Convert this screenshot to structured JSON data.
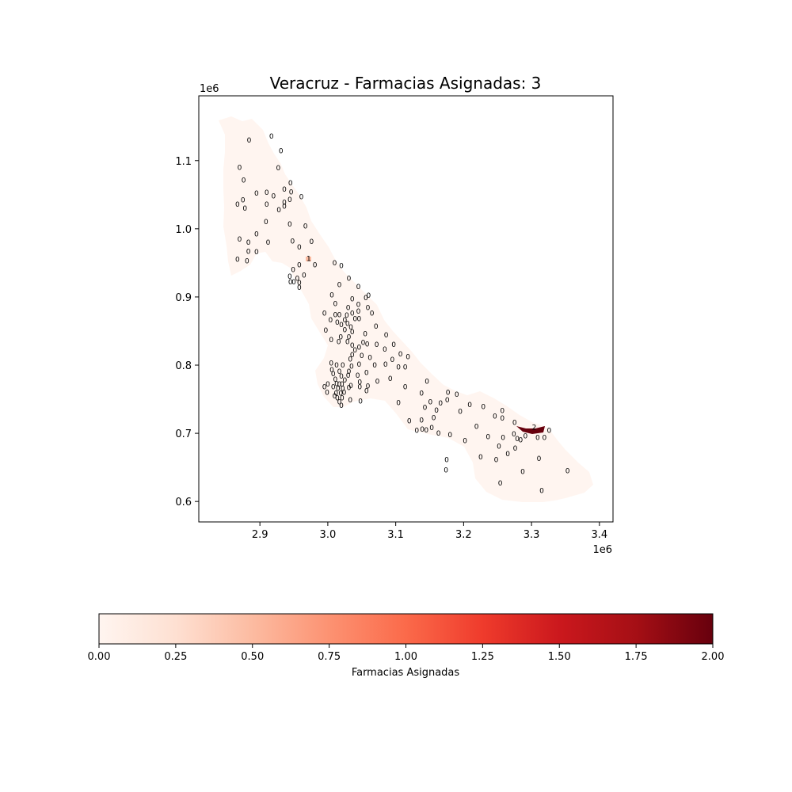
{
  "title": "Veracruz  - Farmacias Asignadas: 3",
  "map": {
    "x_offset_label": "1e6",
    "y_offset_label": "1e6",
    "x_ticks": [
      "2.9",
      "3.0",
      "3.1",
      "3.2",
      "3.3",
      "3.4"
    ],
    "y_ticks": [
      "0.6",
      "0.7",
      "0.8",
      "0.9",
      "1.0",
      "1.1"
    ],
    "x_range": [
      2.81,
      3.42
    ],
    "y_range": [
      0.57,
      1.195
    ],
    "region_fill": "#fff5f0",
    "highlight_fill": "#67000d",
    "mid_fill": "#fcbba1",
    "labels": [
      {
        "x": 2.884,
        "y": 1.13,
        "v": "0"
      },
      {
        "x": 2.917,
        "y": 1.136,
        "v": "0"
      },
      {
        "x": 2.931,
        "y": 1.114,
        "v": "0"
      },
      {
        "x": 2.87,
        "y": 1.09,
        "v": "0"
      },
      {
        "x": 2.927,
        "y": 1.089,
        "v": "0"
      },
      {
        "x": 2.876,
        "y": 1.071,
        "v": "0"
      },
      {
        "x": 2.945,
        "y": 1.067,
        "v": "0"
      },
      {
        "x": 2.895,
        "y": 1.052,
        "v": "0"
      },
      {
        "x": 2.91,
        "y": 1.053,
        "v": "0"
      },
      {
        "x": 2.936,
        "y": 1.058,
        "v": "0"
      },
      {
        "x": 2.946,
        "y": 1.054,
        "v": "0"
      },
      {
        "x": 2.92,
        "y": 1.048,
        "v": "0"
      },
      {
        "x": 2.961,
        "y": 1.047,
        "v": "0"
      },
      {
        "x": 2.875,
        "y": 1.042,
        "v": "0"
      },
      {
        "x": 2.867,
        "y": 1.036,
        "v": "0"
      },
      {
        "x": 2.878,
        "y": 1.03,
        "v": "0"
      },
      {
        "x": 2.91,
        "y": 1.036,
        "v": "0"
      },
      {
        "x": 2.936,
        "y": 1.039,
        "v": "0"
      },
      {
        "x": 2.944,
        "y": 1.043,
        "v": "0"
      },
      {
        "x": 2.936,
        "y": 1.033,
        "v": "0"
      },
      {
        "x": 2.928,
        "y": 1.028,
        "v": "0"
      },
      {
        "x": 2.909,
        "y": 1.01,
        "v": "0"
      },
      {
        "x": 2.944,
        "y": 1.007,
        "v": "0"
      },
      {
        "x": 2.967,
        "y": 1.004,
        "v": "0"
      },
      {
        "x": 2.895,
        "y": 0.992,
        "v": "0"
      },
      {
        "x": 2.87,
        "y": 0.985,
        "v": "0"
      },
      {
        "x": 2.883,
        "y": 0.98,
        "v": "0"
      },
      {
        "x": 2.912,
        "y": 0.98,
        "v": "0"
      },
      {
        "x": 2.948,
        "y": 0.982,
        "v": "0"
      },
      {
        "x": 2.976,
        "y": 0.981,
        "v": "0"
      },
      {
        "x": 2.958,
        "y": 0.973,
        "v": "0"
      },
      {
        "x": 2.883,
        "y": 0.967,
        "v": "0"
      },
      {
        "x": 2.895,
        "y": 0.966,
        "v": "0"
      },
      {
        "x": 2.867,
        "y": 0.955,
        "v": "0"
      },
      {
        "x": 2.881,
        "y": 0.953,
        "v": "0"
      },
      {
        "x": 2.972,
        "y": 0.956,
        "v": "1"
      },
      {
        "x": 2.958,
        "y": 0.947,
        "v": "0"
      },
      {
        "x": 2.981,
        "y": 0.947,
        "v": "0"
      },
      {
        "x": 3.01,
        "y": 0.95,
        "v": "0"
      },
      {
        "x": 3.02,
        "y": 0.946,
        "v": "0"
      },
      {
        "x": 2.949,
        "y": 0.94,
        "v": "0"
      },
      {
        "x": 2.944,
        "y": 0.93,
        "v": "0"
      },
      {
        "x": 2.955,
        "y": 0.927,
        "v": "0"
      },
      {
        "x": 2.965,
        "y": 0.932,
        "v": "0"
      },
      {
        "x": 2.945,
        "y": 0.922,
        "v": "0"
      },
      {
        "x": 2.95,
        "y": 0.922,
        "v": "0"
      },
      {
        "x": 2.958,
        "y": 0.921,
        "v": "0"
      },
      {
        "x": 2.958,
        "y": 0.914,
        "v": "0"
      },
      {
        "x": 3.031,
        "y": 0.927,
        "v": "0"
      },
      {
        "x": 3.017,
        "y": 0.918,
        "v": "0"
      },
      {
        "x": 3.045,
        "y": 0.915,
        "v": "0"
      },
      {
        "x": 3.006,
        "y": 0.903,
        "v": "0"
      },
      {
        "x": 3.036,
        "y": 0.897,
        "v": "0"
      },
      {
        "x": 3.056,
        "y": 0.899,
        "v": "0"
      },
      {
        "x": 3.06,
        "y": 0.902,
        "v": "0"
      },
      {
        "x": 3.011,
        "y": 0.89,
        "v": "0"
      },
      {
        "x": 3.045,
        "y": 0.889,
        "v": "0"
      },
      {
        "x": 3.059,
        "y": 0.884,
        "v": "0"
      },
      {
        "x": 3.03,
        "y": 0.884,
        "v": "0"
      },
      {
        "x": 2.995,
        "y": 0.876,
        "v": "0"
      },
      {
        "x": 3.011,
        "y": 0.874,
        "v": "0"
      },
      {
        "x": 3.017,
        "y": 0.874,
        "v": "0"
      },
      {
        "x": 3.028,
        "y": 0.873,
        "v": "0"
      },
      {
        "x": 3.036,
        "y": 0.876,
        "v": "0"
      },
      {
        "x": 3.045,
        "y": 0.879,
        "v": "0"
      },
      {
        "x": 3.065,
        "y": 0.876,
        "v": "0"
      },
      {
        "x": 3.004,
        "y": 0.866,
        "v": "0"
      },
      {
        "x": 3.014,
        "y": 0.863,
        "v": "0"
      },
      {
        "x": 3.025,
        "y": 0.866,
        "v": "0"
      },
      {
        "x": 3.04,
        "y": 0.868,
        "v": "0"
      },
      {
        "x": 3.046,
        "y": 0.868,
        "v": "0"
      },
      {
        "x": 3.02,
        "y": 0.859,
        "v": "0"
      },
      {
        "x": 3.029,
        "y": 0.861,
        "v": "0"
      },
      {
        "x": 3.034,
        "y": 0.856,
        "v": "0"
      },
      {
        "x": 3.071,
        "y": 0.857,
        "v": "0"
      },
      {
        "x": 2.997,
        "y": 0.851,
        "v": "0"
      },
      {
        "x": 3.025,
        "y": 0.852,
        "v": "0"
      },
      {
        "x": 3.036,
        "y": 0.849,
        "v": "0"
      },
      {
        "x": 3.055,
        "y": 0.846,
        "v": "0"
      },
      {
        "x": 3.086,
        "y": 0.844,
        "v": "0"
      },
      {
        "x": 3.019,
        "y": 0.841,
        "v": "0"
      },
      {
        "x": 3.031,
        "y": 0.841,
        "v": "0"
      },
      {
        "x": 3.005,
        "y": 0.837,
        "v": "0"
      },
      {
        "x": 3.016,
        "y": 0.834,
        "v": "0"
      },
      {
        "x": 3.029,
        "y": 0.834,
        "v": "0"
      },
      {
        "x": 3.036,
        "y": 0.829,
        "v": "0"
      },
      {
        "x": 3.052,
        "y": 0.833,
        "v": "0"
      },
      {
        "x": 3.058,
        "y": 0.831,
        "v": "0"
      },
      {
        "x": 3.072,
        "y": 0.83,
        "v": "0"
      },
      {
        "x": 3.097,
        "y": 0.83,
        "v": "0"
      },
      {
        "x": 3.046,
        "y": 0.826,
        "v": "0"
      },
      {
        "x": 3.04,
        "y": 0.822,
        "v": "0"
      },
      {
        "x": 3.084,
        "y": 0.823,
        "v": "0"
      },
      {
        "x": 3.036,
        "y": 0.815,
        "v": "0"
      },
      {
        "x": 3.033,
        "y": 0.809,
        "v": "0"
      },
      {
        "x": 3.05,
        "y": 0.814,
        "v": "0"
      },
      {
        "x": 3.062,
        "y": 0.811,
        "v": "0"
      },
      {
        "x": 3.107,
        "y": 0.816,
        "v": "0"
      },
      {
        "x": 3.118,
        "y": 0.812,
        "v": "0"
      },
      {
        "x": 3.095,
        "y": 0.808,
        "v": "0"
      },
      {
        "x": 3.005,
        "y": 0.803,
        "v": "0"
      },
      {
        "x": 3.013,
        "y": 0.8,
        "v": "0"
      },
      {
        "x": 3.022,
        "y": 0.8,
        "v": "0"
      },
      {
        "x": 3.035,
        "y": 0.798,
        "v": "0"
      },
      {
        "x": 3.046,
        "y": 0.801,
        "v": "0"
      },
      {
        "x": 3.069,
        "y": 0.8,
        "v": "0"
      },
      {
        "x": 3.085,
        "y": 0.801,
        "v": "0"
      },
      {
        "x": 3.104,
        "y": 0.797,
        "v": "0"
      },
      {
        "x": 3.114,
        "y": 0.797,
        "v": "0"
      },
      {
        "x": 3.006,
        "y": 0.793,
        "v": "0"
      },
      {
        "x": 3.017,
        "y": 0.791,
        "v": "0"
      },
      {
        "x": 3.031,
        "y": 0.791,
        "v": "0"
      },
      {
        "x": 3.057,
        "y": 0.789,
        "v": "0"
      },
      {
        "x": 3.008,
        "y": 0.787,
        "v": "0"
      },
      {
        "x": 3.02,
        "y": 0.784,
        "v": "0"
      },
      {
        "x": 3.03,
        "y": 0.785,
        "v": "0"
      },
      {
        "x": 3.044,
        "y": 0.785,
        "v": "0"
      },
      {
        "x": 3.092,
        "y": 0.78,
        "v": "0"
      },
      {
        "x": 3.011,
        "y": 0.779,
        "v": "0"
      },
      {
        "x": 3.025,
        "y": 0.778,
        "v": "0"
      },
      {
        "x": 3.047,
        "y": 0.775,
        "v": "0"
      },
      {
        "x": 3.073,
        "y": 0.776,
        "v": "0"
      },
      {
        "x": 3.146,
        "y": 0.776,
        "v": "0"
      },
      {
        "x": 3.0,
        "y": 0.772,
        "v": "0"
      },
      {
        "x": 3.013,
        "y": 0.773,
        "v": "0"
      },
      {
        "x": 3.017,
        "y": 0.772,
        "v": "0"
      },
      {
        "x": 3.021,
        "y": 0.772,
        "v": "0"
      },
      {
        "x": 3.034,
        "y": 0.77,
        "v": "0"
      },
      {
        "x": 2.995,
        "y": 0.768,
        "v": "0"
      },
      {
        "x": 3.008,
        "y": 0.768,
        "v": "0"
      },
      {
        "x": 3.015,
        "y": 0.766,
        "v": "0"
      },
      {
        "x": 3.022,
        "y": 0.766,
        "v": "0"
      },
      {
        "x": 3.031,
        "y": 0.767,
        "v": "0"
      },
      {
        "x": 3.047,
        "y": 0.768,
        "v": "0"
      },
      {
        "x": 3.059,
        "y": 0.769,
        "v": "0"
      },
      {
        "x": 3.114,
        "y": 0.768,
        "v": "0"
      },
      {
        "x": 2.999,
        "y": 0.76,
        "v": "0"
      },
      {
        "x": 3.012,
        "y": 0.759,
        "v": "0"
      },
      {
        "x": 3.019,
        "y": 0.759,
        "v": "0"
      },
      {
        "x": 3.024,
        "y": 0.76,
        "v": "0"
      },
      {
        "x": 3.057,
        "y": 0.762,
        "v": "0"
      },
      {
        "x": 3.177,
        "y": 0.76,
        "v": "0"
      },
      {
        "x": 3.19,
        "y": 0.757,
        "v": "0"
      },
      {
        "x": 3.138,
        "y": 0.759,
        "v": "0"
      },
      {
        "x": 3.014,
        "y": 0.752,
        "v": "0"
      },
      {
        "x": 3.021,
        "y": 0.752,
        "v": "0"
      },
      {
        "x": 3.033,
        "y": 0.749,
        "v": "0"
      },
      {
        "x": 3.01,
        "y": 0.755,
        "v": "0"
      },
      {
        "x": 3.017,
        "y": 0.746,
        "v": "0"
      },
      {
        "x": 3.02,
        "y": 0.741,
        "v": "0"
      },
      {
        "x": 3.048,
        "y": 0.747,
        "v": "0"
      },
      {
        "x": 3.104,
        "y": 0.745,
        "v": "0"
      },
      {
        "x": 3.151,
        "y": 0.746,
        "v": "0"
      },
      {
        "x": 3.166,
        "y": 0.744,
        "v": "0"
      },
      {
        "x": 3.176,
        "y": 0.749,
        "v": "0"
      },
      {
        "x": 3.209,
        "y": 0.742,
        "v": "0"
      },
      {
        "x": 3.229,
        "y": 0.739,
        "v": "0"
      },
      {
        "x": 3.257,
        "y": 0.733,
        "v": "0"
      },
      {
        "x": 3.143,
        "y": 0.738,
        "v": "0"
      },
      {
        "x": 3.16,
        "y": 0.734,
        "v": "0"
      },
      {
        "x": 3.195,
        "y": 0.732,
        "v": "0"
      },
      {
        "x": 3.246,
        "y": 0.725,
        "v": "0"
      },
      {
        "x": 3.257,
        "y": 0.722,
        "v": "0"
      },
      {
        "x": 3.275,
        "y": 0.716,
        "v": "0"
      },
      {
        "x": 3.156,
        "y": 0.723,
        "v": "0"
      },
      {
        "x": 3.12,
        "y": 0.718,
        "v": "0"
      },
      {
        "x": 3.138,
        "y": 0.719,
        "v": "0"
      },
      {
        "x": 3.219,
        "y": 0.71,
        "v": "0"
      },
      {
        "x": 3.131,
        "y": 0.704,
        "v": "0"
      },
      {
        "x": 3.139,
        "y": 0.706,
        "v": "0"
      },
      {
        "x": 3.145,
        "y": 0.705,
        "v": "0"
      },
      {
        "x": 3.153,
        "y": 0.708,
        "v": "0"
      },
      {
        "x": 3.163,
        "y": 0.7,
        "v": "0"
      },
      {
        "x": 3.18,
        "y": 0.698,
        "v": "0"
      },
      {
        "x": 3.304,
        "y": 0.709,
        "v": "2"
      },
      {
        "x": 3.326,
        "y": 0.704,
        "v": "0"
      },
      {
        "x": 3.274,
        "y": 0.699,
        "v": "0"
      },
      {
        "x": 3.291,
        "y": 0.696,
        "v": "0"
      },
      {
        "x": 3.309,
        "y": 0.694,
        "v": "0"
      },
      {
        "x": 3.319,
        "y": 0.694,
        "v": "0"
      },
      {
        "x": 3.279,
        "y": 0.692,
        "v": "0"
      },
      {
        "x": 3.284,
        "y": 0.69,
        "v": "0"
      },
      {
        "x": 3.236,
        "y": 0.695,
        "v": "0"
      },
      {
        "x": 3.258,
        "y": 0.694,
        "v": "0"
      },
      {
        "x": 3.202,
        "y": 0.689,
        "v": "0"
      },
      {
        "x": 3.252,
        "y": 0.681,
        "v": "0"
      },
      {
        "x": 3.276,
        "y": 0.678,
        "v": "0"
      },
      {
        "x": 3.265,
        "y": 0.67,
        "v": "0"
      },
      {
        "x": 3.175,
        "y": 0.661,
        "v": "0"
      },
      {
        "x": 3.225,
        "y": 0.665,
        "v": "0"
      },
      {
        "x": 3.248,
        "y": 0.661,
        "v": "0"
      },
      {
        "x": 3.311,
        "y": 0.663,
        "v": "0"
      },
      {
        "x": 3.174,
        "y": 0.646,
        "v": "0"
      },
      {
        "x": 3.287,
        "y": 0.644,
        "v": "0"
      },
      {
        "x": 3.353,
        "y": 0.645,
        "v": "0"
      },
      {
        "x": 3.254,
        "y": 0.627,
        "v": "0"
      },
      {
        "x": 3.315,
        "y": 0.616,
        "v": "0"
      }
    ]
  },
  "colorbar": {
    "label": "Farmacias Asignadas",
    "ticks": [
      "0.00",
      "0.25",
      "0.50",
      "0.75",
      "1.00",
      "1.25",
      "1.50",
      "1.75",
      "2.00"
    ],
    "range": [
      0,
      2
    ],
    "colors": [
      "#fff5f0",
      "#fee0d2",
      "#fcbba1",
      "#fc9272",
      "#fb6a4a",
      "#ef3b2c",
      "#cb181d",
      "#a50f15",
      "#67000d"
    ]
  }
}
